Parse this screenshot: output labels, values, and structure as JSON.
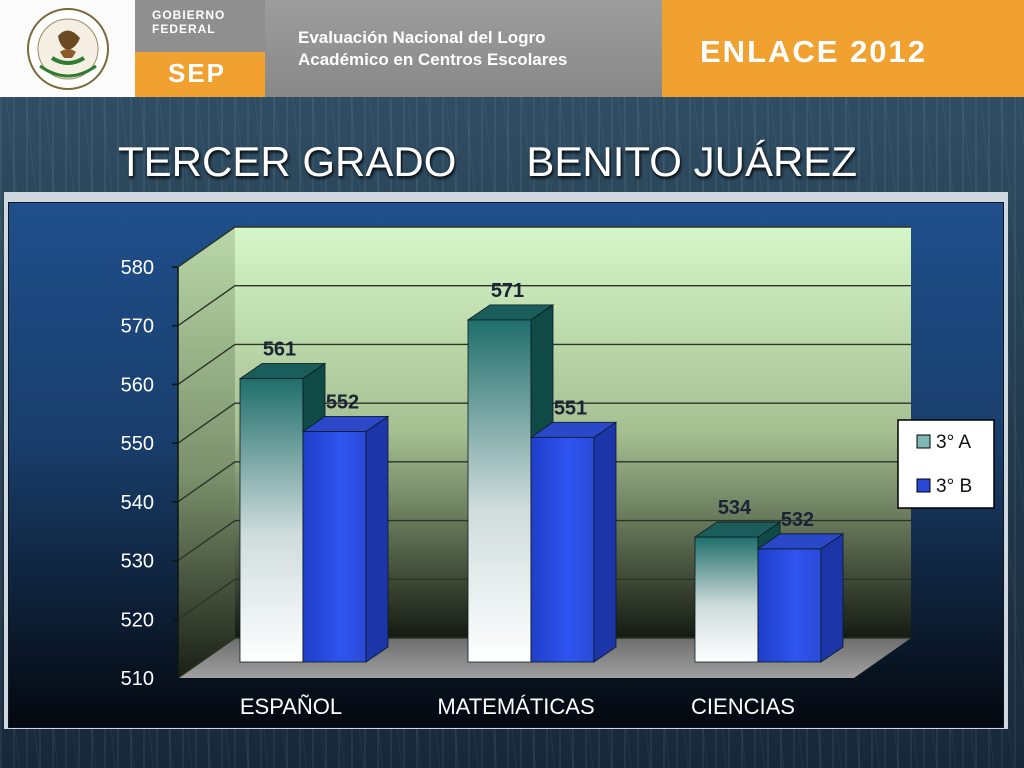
{
  "header": {
    "seal_icon": "mexican-coat-of-arms-seal",
    "gobierno_label": "Gobierno\nFederal",
    "sep_label": "SEP",
    "evaluation_label": "Evaluación Nacional del Logro\nAcadémico en Centros Escolares",
    "enlace_label": "ENLACE 2012"
  },
  "title": "TERCER GRADO      BENITO JUÁREZ",
  "colors": {
    "banner_orange": "#f1a12f",
    "banner_gray": "#8f8f8f",
    "series_a": "#1f6e6a",
    "series_b": "#2146e0"
  },
  "chart_data": {
    "type": "bar",
    "style": "3d-clustered-column",
    "categories": [
      "ESPAÑOL",
      "MATEMÁTICAS",
      "CIENCIAS"
    ],
    "series": [
      {
        "name": "3° A",
        "values": [
          561,
          571,
          534
        ]
      },
      {
        "name": "3° B",
        "values": [
          552,
          551,
          532
        ]
      }
    ],
    "data_labels": [
      [
        "561",
        "571",
        "534"
      ],
      [
        "552",
        "551",
        "532"
      ]
    ],
    "ylim": [
      510,
      580
    ],
    "yticks": [
      510,
      520,
      530,
      540,
      550,
      560,
      570,
      580
    ],
    "grid": true,
    "legend_position": "right"
  }
}
